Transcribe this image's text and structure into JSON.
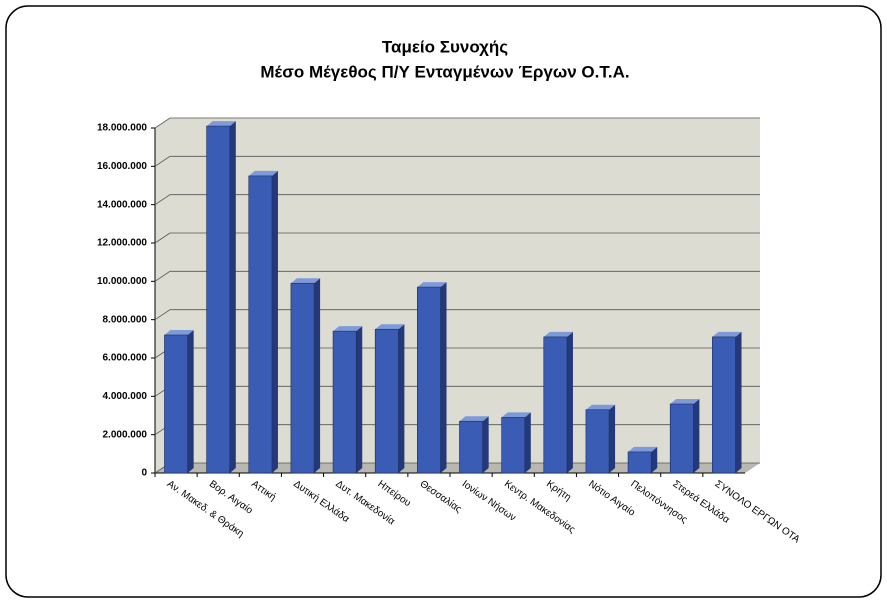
{
  "chart_data": {
    "type": "bar",
    "title": "Ταμείο Συνοχής",
    "subtitle": "Μέσο Μέγεθος Π/Υ Ενταγμένων Έργων Ο.Τ.Α.",
    "categories": [
      "Αν. Μακεδ. & Θράκη",
      "Βορ. Αιγαίο",
      "Αττική",
      "Δυτική Ελλάδα",
      "Δυτ. Μακεδονία",
      "Ηπείρου",
      "Θεσσαλίας",
      "Ιονίων Νήσων",
      "Κεντρ. Μακεδονίας",
      "Κρήτη",
      "Νότιο Αιγαίο",
      "Πελοπόννησος",
      "Στερεά Ελλάδα",
      "ΣΥΝΟΛΟ ΕΡΓΩΝ ΟΤΑ"
    ],
    "values": [
      7200000,
      18100000,
      15500000,
      9900000,
      7400000,
      7500000,
      9700000,
      2700000,
      2900000,
      7100000,
      3300000,
      1100000,
      3600000,
      7100000
    ],
    "color": "#3a5cb4",
    "ylim": [
      0,
      18000000
    ],
    "yticks": [
      0,
      {
        "value": 2000000,
        "label": "2.000.000"
      },
      {
        "value": 4000000,
        "label": "4.000.000"
      },
      {
        "value": 6000000,
        "label": "6.000.000"
      },
      {
        "value": 8000000,
        "label": "8.000.000"
      },
      {
        "value": 10000000,
        "label": "10.000.000"
      },
      {
        "value": 12000000,
        "label": "12.000.000"
      },
      {
        "value": 14000000,
        "label": "14.000.000"
      },
      {
        "value": 16000000,
        "label": "16.000.000"
      },
      {
        "value": 18000000,
        "label": "18.000.000"
      }
    ],
    "grid": true
  }
}
